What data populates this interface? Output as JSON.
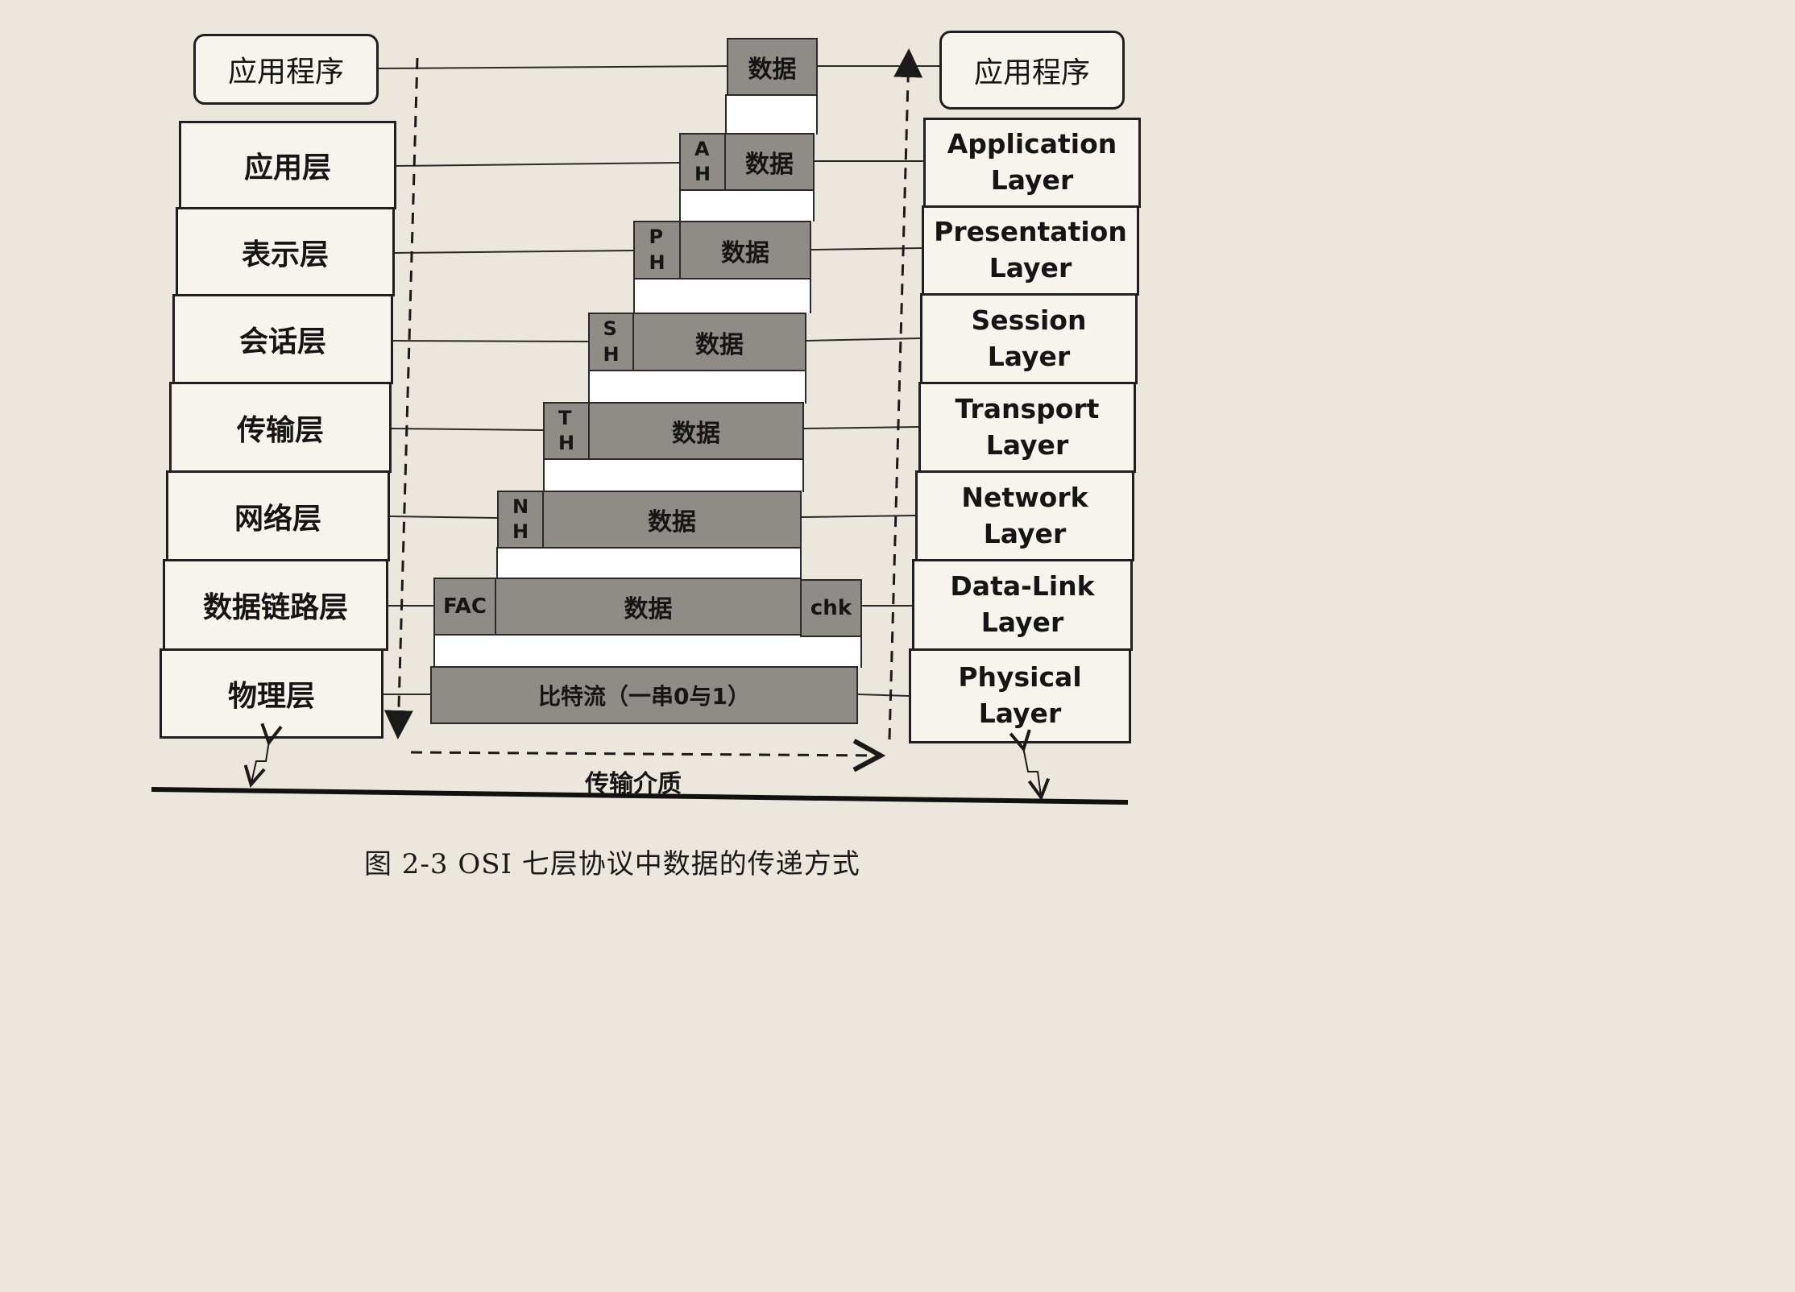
{
  "left_stack": {
    "app_label": "应用程序",
    "layers": [
      "应用层",
      "表示层",
      "会话层",
      "传输层",
      "网络层",
      "数据链路层",
      "物理层"
    ]
  },
  "right_stack": {
    "app_label": "应用程序",
    "layers": [
      "Application\nLayer",
      "Presentation\nLayer",
      "Session\nLayer",
      "Transport\nLayer",
      "Network\nLayer",
      "Data-Link\nLayer",
      "Physical\nLayer"
    ]
  },
  "packets": {
    "data_label": "数据",
    "headers": [
      "A\nH",
      "P\nH",
      "S\nH",
      "T\nH",
      "N\nH"
    ],
    "frame_header": "FAC",
    "frame_trailer": "chk",
    "bitstream": "比特流（一串0与1）"
  },
  "medium_label": "传输介质",
  "caption": "图 2-3  OSI 七层协议中数据的传递方式"
}
